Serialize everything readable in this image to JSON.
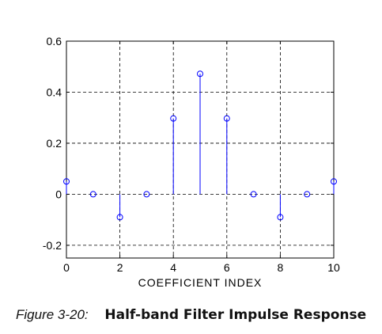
{
  "chart_data": {
    "type": "stem",
    "x": [
      0,
      1,
      2,
      3,
      4,
      5,
      6,
      7,
      8,
      9,
      10
    ],
    "y": [
      0.05,
      0.0,
      -0.09,
      0.0,
      0.297,
      0.472,
      0.297,
      0.0,
      -0.09,
      0.0,
      0.05
    ],
    "xlabel": "COEFFICIENT INDEX",
    "ylabel": "",
    "xlim": [
      0,
      10
    ],
    "ylim": [
      -0.25,
      0.6
    ],
    "xticks": [
      "0",
      "2",
      "4",
      "6",
      "8",
      "10"
    ],
    "yticks": [
      "-0.2",
      "0",
      "0.2",
      "0.4",
      "0.6"
    ],
    "grid": true,
    "color": "#0000ff"
  },
  "caption": {
    "label": "Figure 3-20:",
    "title": "Half-band Filter Impulse Response"
  }
}
